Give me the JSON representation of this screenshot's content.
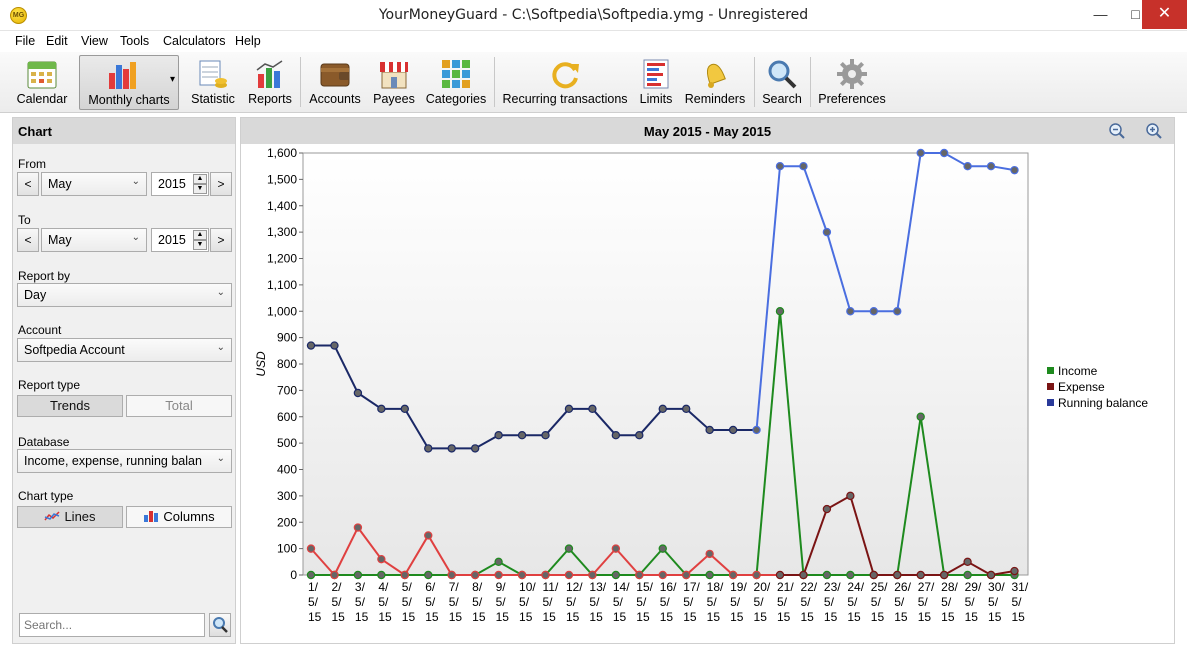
{
  "window": {
    "title": "YourMoneyGuard - C:\\Softpedia\\Softpedia.ymg - Unregistered",
    "icon_text": "MG",
    "minimize": "—",
    "maximize": "□",
    "close": "✕"
  },
  "menu": [
    "File",
    "Edit",
    "View",
    "Tools",
    "Calculators",
    "Help"
  ],
  "toolbar": [
    {
      "label": "Calendar",
      "icon": "calendar-icon"
    },
    {
      "label": "Monthly charts",
      "icon": "bar-chart-icon",
      "selected": true,
      "dropdown": "▾"
    },
    {
      "label": "Statistic",
      "icon": "statistic-icon"
    },
    {
      "label": "Reports",
      "icon": "reports-icon"
    },
    {
      "label": "Accounts",
      "icon": "wallet-icon"
    },
    {
      "label": "Payees",
      "icon": "shop-icon"
    },
    {
      "label": "Categories",
      "icon": "categories-icon"
    },
    {
      "label": "Recurring transactions",
      "icon": "refresh-icon"
    },
    {
      "label": "Limits",
      "icon": "limits-icon"
    },
    {
      "label": "Reminders",
      "icon": "bell-icon"
    },
    {
      "label": "Search",
      "icon": "magnifier-icon"
    },
    {
      "label": "Preferences",
      "icon": "gear-icon"
    }
  ],
  "sidebar": {
    "title": "Chart",
    "from_label": "From",
    "from_month": "May",
    "from_year": "2015",
    "to_label": "To",
    "to_month": "May",
    "to_year": "2015",
    "prev": "<",
    "next": ">",
    "report_by_label": "Report by",
    "report_by": "Day",
    "account_label": "Account",
    "account": "Softpedia Account",
    "report_type_label": "Report type",
    "report_type_trends": "Trends",
    "report_type_total": "Total",
    "database_label": "Database",
    "database": "Income, expense, running balan",
    "chart_type_label": "Chart type",
    "chart_type_lines": "Lines",
    "chart_type_columns": "Columns",
    "search_placeholder": "Search..."
  },
  "chart_header": {
    "title": "May 2015 - May 2015"
  },
  "colors": {
    "income": "#1e8a1e",
    "expense_light": "#e04040",
    "expense_dark": "#7a1414",
    "balance_dark": "#1a2866",
    "balance_light": "#4a6ee0"
  },
  "chart_data": {
    "type": "line",
    "ylabel": "USD",
    "ylim": [
      0,
      1600
    ],
    "yticks": [
      "0",
      "100",
      "200",
      "300",
      "400",
      "500",
      "600",
      "700",
      "800",
      "900",
      "1,000",
      "1,100",
      "1,200",
      "1,300",
      "1,400",
      "1,500",
      "1,600"
    ],
    "categories": [
      "1/5/15",
      "2/5/15",
      "3/5/15",
      "4/5/15",
      "5/5/15",
      "6/5/15",
      "7/5/15",
      "8/5/15",
      "9/5/15",
      "10/5/15",
      "11/5/15",
      "12/5/15",
      "13/5/15",
      "14/5/15",
      "15/5/15",
      "16/5/15",
      "17/5/15",
      "18/5/15",
      "19/5/15",
      "20/5/15",
      "21/5/15",
      "22/5/15",
      "23/5/15",
      "24/5/15",
      "25/5/15",
      "26/5/15",
      "27/5/15",
      "28/5/15",
      "29/5/15",
      "30/5/15",
      "31/5/15"
    ],
    "series": [
      {
        "name": "Income",
        "values": [
          0,
          0,
          0,
          0,
          0,
          0,
          0,
          0,
          50,
          0,
          0,
          100,
          0,
          0,
          0,
          100,
          0,
          0,
          0,
          0,
          1000,
          0,
          0,
          0,
          0,
          0,
          600,
          0,
          0,
          0,
          0
        ]
      },
      {
        "name": "Expense",
        "values": [
          100,
          0,
          180,
          60,
          0,
          150,
          0,
          0,
          0,
          0,
          0,
          0,
          0,
          100,
          0,
          0,
          0,
          80,
          0,
          0,
          0,
          0,
          250,
          300,
          0,
          0,
          0,
          0,
          50,
          0,
          15
        ]
      },
      {
        "name": "Running balance",
        "values": [
          870,
          870,
          690,
          630,
          630,
          480,
          480,
          480,
          530,
          530,
          530,
          630,
          630,
          530,
          530,
          630,
          630,
          550,
          550,
          550,
          1550,
          1550,
          1300,
          1000,
          1000,
          1000,
          1600,
          1600,
          1550,
          1550,
          1535
        ]
      }
    ],
    "legend": "right"
  }
}
